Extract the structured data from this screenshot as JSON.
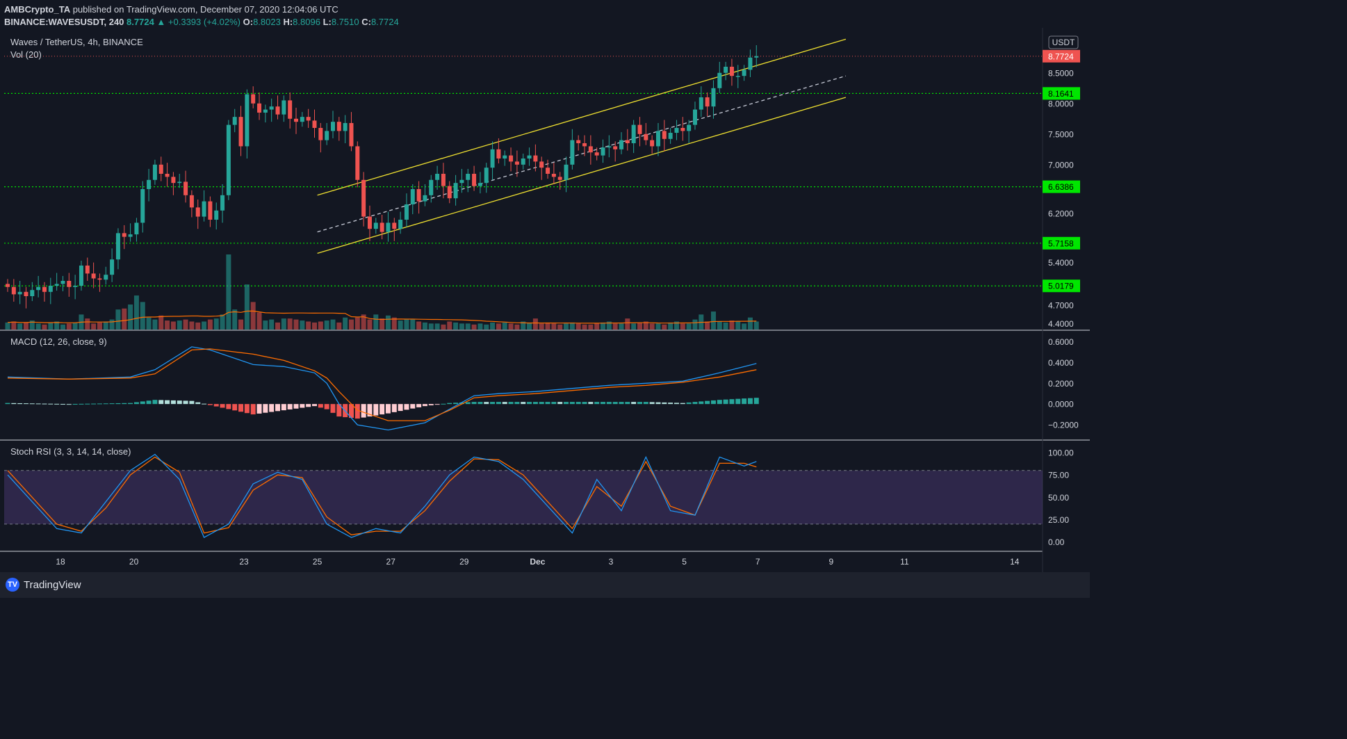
{
  "header": {
    "publisher": "AMBCrypto_TA",
    "published_text": "published on TradingView.com, December 07, 2020 12:04:06 UTC",
    "symbol": "BINANCE:WAVESUSDT, 240",
    "last": "8.7724",
    "change": "▲ +0.3393 (+4.02%)",
    "o_label": "O:",
    "o": "8.8023",
    "h_label": "H:",
    "h": "8.8096",
    "l_label": "L:",
    "l": "8.7510",
    "c_label": "C:",
    "c": "8.7724"
  },
  "footer": {
    "brand": "TradingView"
  },
  "colors": {
    "up": "#26a69a",
    "down": "#ef5350",
    "channel": "#f0e130",
    "level": "#00e600",
    "macd": "#2196f3",
    "signal": "#ff6d00",
    "stoch_k": "#2196f3",
    "stoch_d": "#ff6d00",
    "band": "#7e57c2",
    "price_tag": "#ef5350",
    "level_tag": "#00e600"
  },
  "chart_data": [
    {
      "type": "candlestick",
      "title": "Waves / TetherUS, 4h, BINANCE",
      "volume_label": "Vol (20)",
      "currency": "USDT",
      "x_ticks": [
        "18",
        "20",
        "23",
        "25",
        "27",
        "29",
        "Dec",
        "3",
        "5",
        "7",
        "9",
        "11",
        "14"
      ],
      "y_ticks": [
        "4.4000",
        "4.7000",
        "5.0179",
        "5.4000",
        "5.7158",
        "6.2000",
        "6.6386",
        "7.0000",
        "7.5000",
        "8.0000",
        "8.1641",
        "8.5000",
        "8.7724"
      ],
      "ylim": [
        4.35,
        9.1
      ],
      "last_price": 8.7724,
      "horizontal_levels": [
        8.1641,
        6.6386,
        5.7158,
        5.0179
      ],
      "channel": {
        "upper": [
          [
            25.0,
            6.5
          ],
          [
            39.4,
            9.05
          ]
        ],
        "middle": [
          [
            25.0,
            5.9
          ],
          [
            39.4,
            8.45
          ]
        ],
        "lower": [
          [
            25.0,
            5.55
          ],
          [
            39.4,
            8.1
          ]
        ]
      },
      "closes": [
        5.0,
        4.88,
        4.92,
        4.85,
        4.95,
        5.0,
        4.92,
        5.02,
        5.05,
        5.1,
        5.0,
        5.02,
        5.35,
        5.22,
        5.14,
        5.12,
        5.2,
        5.45,
        5.88,
        5.82,
        5.86,
        6.05,
        6.6,
        6.75,
        7.0,
        6.85,
        6.8,
        6.7,
        6.72,
        6.5,
        6.3,
        6.15,
        6.4,
        6.1,
        6.25,
        6.5,
        7.65,
        7.78,
        7.3,
        8.15,
        8.0,
        7.85,
        7.9,
        7.95,
        7.82,
        8.05,
        7.75,
        7.7,
        7.78,
        7.72,
        7.6,
        7.4,
        7.55,
        7.7,
        7.55,
        7.68,
        7.3,
        6.75,
        6.15,
        5.95,
        6.05,
        5.9,
        6.05,
        5.95,
        6.1,
        6.35,
        6.6,
        6.4,
        6.5,
        6.75,
        6.85,
        6.65,
        6.45,
        6.7,
        6.75,
        6.85,
        6.65,
        6.7,
        6.95,
        7.25,
        7.1,
        7.15,
        7.05,
        7.0,
        7.1,
        7.15,
        7.05,
        6.95,
        6.85,
        6.8,
        6.75,
        7.0,
        7.4,
        7.35,
        7.3,
        7.2,
        7.15,
        7.28,
        7.3,
        7.25,
        7.4,
        7.35,
        7.65,
        7.5,
        7.4,
        7.3,
        7.55,
        7.42,
        7.52,
        7.6,
        7.55,
        7.65,
        7.9,
        8.1,
        7.95,
        8.25,
        8.5,
        8.6,
        8.45,
        8.45,
        8.55,
        8.75,
        8.7724
      ],
      "volumes": [
        14,
        16,
        12,
        14,
        18,
        12,
        10,
        14,
        16,
        10,
        12,
        14,
        30,
        22,
        12,
        14,
        16,
        20,
        40,
        42,
        50,
        68,
        55,
        24,
        20,
        28,
        18,
        16,
        18,
        20,
        16,
        14,
        16,
        20,
        22,
        30,
        150,
        40,
        20,
        90,
        55,
        34,
        18,
        20,
        14,
        22,
        22,
        20,
        18,
        16,
        14,
        16,
        18,
        20,
        14,
        24,
        20,
        24,
        30,
        20,
        30,
        22,
        28,
        24,
        18,
        20,
        20,
        16,
        14,
        12,
        12,
        10,
        16,
        14,
        12,
        12,
        10,
        12,
        10,
        14,
        12,
        14,
        12,
        10,
        16,
        14,
        22,
        12,
        14,
        12,
        10,
        12,
        14,
        12,
        10,
        10,
        12,
        14,
        16,
        12,
        12,
        22,
        12,
        14,
        16,
        12,
        12,
        10,
        14,
        16,
        12,
        12,
        20,
        30,
        16,
        36,
        16,
        14,
        18,
        16,
        12,
        24,
        16
      ]
    },
    {
      "type": "line",
      "title": "MACD (12, 26, close, 9)",
      "y_ticks": [
        "0.6000",
        "0.4000",
        "0.2000",
        "0.0000",
        "−0.2000"
      ],
      "ylim": [
        -0.3,
        0.65
      ],
      "series": [
        {
          "name": "MACD",
          "x": [
            0,
            10,
            20,
            24,
            30,
            33,
            40,
            45,
            50,
            52,
            54,
            57,
            62,
            68,
            72,
            76,
            80,
            86,
            92,
            98,
            104,
            110,
            116,
            122
          ],
          "y": [
            0.26,
            0.24,
            0.26,
            0.33,
            0.55,
            0.52,
            0.38,
            0.36,
            0.3,
            0.2,
            0.0,
            -0.2,
            -0.25,
            -0.18,
            -0.05,
            0.08,
            0.1,
            0.12,
            0.15,
            0.18,
            0.2,
            0.22,
            0.3,
            0.39
          ]
        },
        {
          "name": "Signal",
          "x": [
            0,
            10,
            20,
            24,
            30,
            33,
            40,
            45,
            50,
            52,
            54,
            57,
            62,
            68,
            72,
            76,
            80,
            86,
            92,
            98,
            104,
            110,
            116,
            122
          ],
          "y": [
            0.25,
            0.24,
            0.25,
            0.29,
            0.52,
            0.53,
            0.48,
            0.42,
            0.32,
            0.25,
            0.12,
            -0.06,
            -0.16,
            -0.16,
            -0.06,
            0.06,
            0.08,
            0.1,
            0.13,
            0.16,
            0.18,
            0.21,
            0.26,
            0.33
          ]
        }
      ]
    },
    {
      "type": "line",
      "title": "Stoch RSI (3, 3, 14, 14, close)",
      "y_ticks": [
        "100.00",
        "75.00",
        "50.00",
        "25.00",
        "0.00"
      ],
      "ylim": [
        -5,
        107
      ],
      "band": [
        20,
        80
      ],
      "series": [
        {
          "name": "K",
          "x": [
            0,
            4,
            8,
            12,
            16,
            20,
            24,
            28,
            32,
            36,
            40,
            44,
            48,
            52,
            56,
            60,
            64,
            68,
            72,
            76,
            80,
            84,
            88,
            92,
            96,
            100,
            104,
            108,
            112,
            116,
            120,
            122
          ],
          "y": [
            75,
            45,
            15,
            10,
            45,
            80,
            98,
            70,
            5,
            20,
            65,
            78,
            70,
            20,
            5,
            15,
            10,
            40,
            75,
            95,
            90,
            70,
            40,
            10,
            70,
            35,
            95,
            35,
            30,
            95,
            85,
            90
          ]
        },
        {
          "name": "D",
          "x": [
            0,
            4,
            8,
            12,
            16,
            20,
            24,
            28,
            32,
            36,
            40,
            44,
            48,
            52,
            56,
            60,
            64,
            68,
            72,
            76,
            80,
            84,
            88,
            92,
            96,
            100,
            104,
            108,
            112,
            116,
            120,
            122
          ],
          "y": [
            80,
            50,
            20,
            12,
            38,
            75,
            95,
            78,
            10,
            16,
            58,
            75,
            72,
            28,
            8,
            12,
            12,
            35,
            68,
            93,
            92,
            75,
            45,
            15,
            62,
            40,
            90,
            40,
            30,
            88,
            88,
            84
          ]
        }
      ]
    }
  ]
}
